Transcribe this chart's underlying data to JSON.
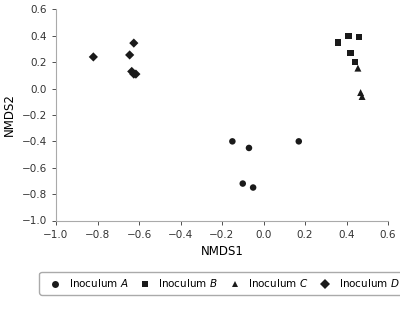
{
  "inoculum_A": {
    "x": [
      -0.15,
      -0.07,
      -0.1,
      -0.05,
      0.17
    ],
    "y": [
      -0.4,
      -0.45,
      -0.72,
      -0.75,
      -0.4
    ],
    "marker": "o",
    "label": "Inoculum $\\it{A}$",
    "color": "#1a1a1a",
    "size": 22,
    "zorder": 3
  },
  "inoculum_B": {
    "x": [
      0.36,
      0.41,
      0.42,
      0.44,
      0.46
    ],
    "y": [
      0.35,
      0.4,
      0.27,
      0.2,
      0.39
    ],
    "marker": "s",
    "label": "Inoculum $\\it{B}$",
    "color": "#1a1a1a",
    "size": 22,
    "zorder": 3
  },
  "inoculum_C": {
    "x": [
      0.455,
      0.468,
      0.475
    ],
    "y": [
      0.155,
      -0.03,
      -0.06
    ],
    "marker": "^",
    "label": "Inoculum $\\it{C}$",
    "color": "#1a1a1a",
    "size": 25,
    "zorder": 3
  },
  "inoculum_D": {
    "x": [
      -0.82,
      -0.645,
      -0.635,
      -0.625,
      -0.625,
      -0.615
    ],
    "y": [
      0.24,
      0.255,
      0.13,
      0.11,
      0.345,
      0.11
    ],
    "marker": "D",
    "label": "Inoculum $\\it{D}$",
    "color": "#1a1a1a",
    "size": 22,
    "zorder": 3
  },
  "xlim": [
    -1.0,
    0.6
  ],
  "ylim": [
    -1.0,
    0.6
  ],
  "xlabel": "NMDS1",
  "ylabel": "NMDS2",
  "xticks": [
    -1.0,
    -0.8,
    -0.6,
    -0.4,
    -0.2,
    0.0,
    0.2,
    0.4,
    0.6
  ],
  "yticks": [
    -1.0,
    -0.8,
    -0.6,
    -0.4,
    -0.2,
    0.0,
    0.2,
    0.4,
    0.6
  ],
  "background_color": "#ffffff",
  "legend_fontsize": 7.5,
  "axis_fontsize": 8.5,
  "tick_fontsize": 7.5
}
